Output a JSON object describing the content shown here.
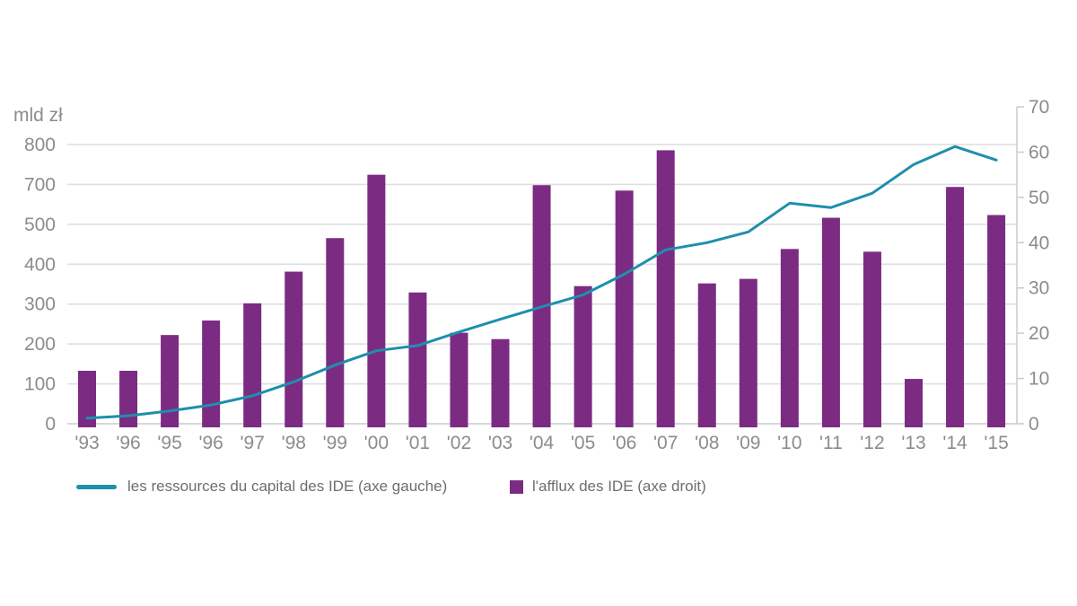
{
  "axes": {
    "left_unit_label": "mld zł"
  },
  "legend": {
    "items": [
      {
        "label": "les ressources du capital des IDE (axe gauche)",
        "swatch": "line"
      },
      {
        "label": "l'afflux des IDE (axe droit)",
        "swatch": "square"
      }
    ]
  },
  "colors": {
    "axis_text": "#8A8C8E",
    "legend_text": "#6D6E71",
    "gridline": "#DCDDDE",
    "axis_line": "#C9CBCD"
  },
  "chart_data": {
    "type": "bar",
    "subtype": "dual-axis-bar-and-line",
    "title": "",
    "categories": [
      "'93",
      "'96",
      "'95",
      "'96",
      "'97",
      "'98",
      "'99",
      "'00",
      "'01",
      "'02",
      "'03",
      "'04",
      "'05",
      "'06",
      "'07",
      "'08",
      "'09",
      "'10",
      "'11",
      "'12",
      "'13",
      "'14",
      "'15"
    ],
    "series": [
      {
        "name": "les ressources du capital des IDE (axe gauche)",
        "type": "line",
        "axis": "left",
        "color": "#1E8FAD",
        "values": [
          14,
          20,
          32,
          47,
          70,
          105,
          147,
          183,
          196,
          230,
          262,
          293,
          323,
          375,
          436,
          454,
          481,
          553,
          542,
          578,
          650,
          695,
          661
        ]
      },
      {
        "name": "l'afflux des IDE (axe droit)",
        "type": "bar",
        "axis": "right",
        "color": "#7C2B83",
        "values": [
          11.7,
          11.7,
          19.6,
          22.8,
          26.6,
          33.6,
          41,
          55,
          29,
          20.1,
          18.7,
          52.7,
          30.4,
          51.5,
          60.4,
          31,
          32,
          38.6,
          45.5,
          38,
          9.9,
          52.3,
          46.1
        ]
      }
    ],
    "left_axis": {
      "unit": "mld zł",
      "tick_labels_top_to_bottom": [
        "800",
        "700",
        "500",
        "400",
        "300",
        "200",
        "100",
        "0"
      ],
      "range_displayed": [
        0,
        800
      ]
    },
    "right_axis": {
      "tick_labels_top_to_bottom": [
        "70",
        "60",
        "50",
        "40",
        "30",
        "20",
        "10",
        "0"
      ],
      "range": [
        0,
        70
      ]
    },
    "grid": "horizontal",
    "legend_position": "bottom"
  }
}
